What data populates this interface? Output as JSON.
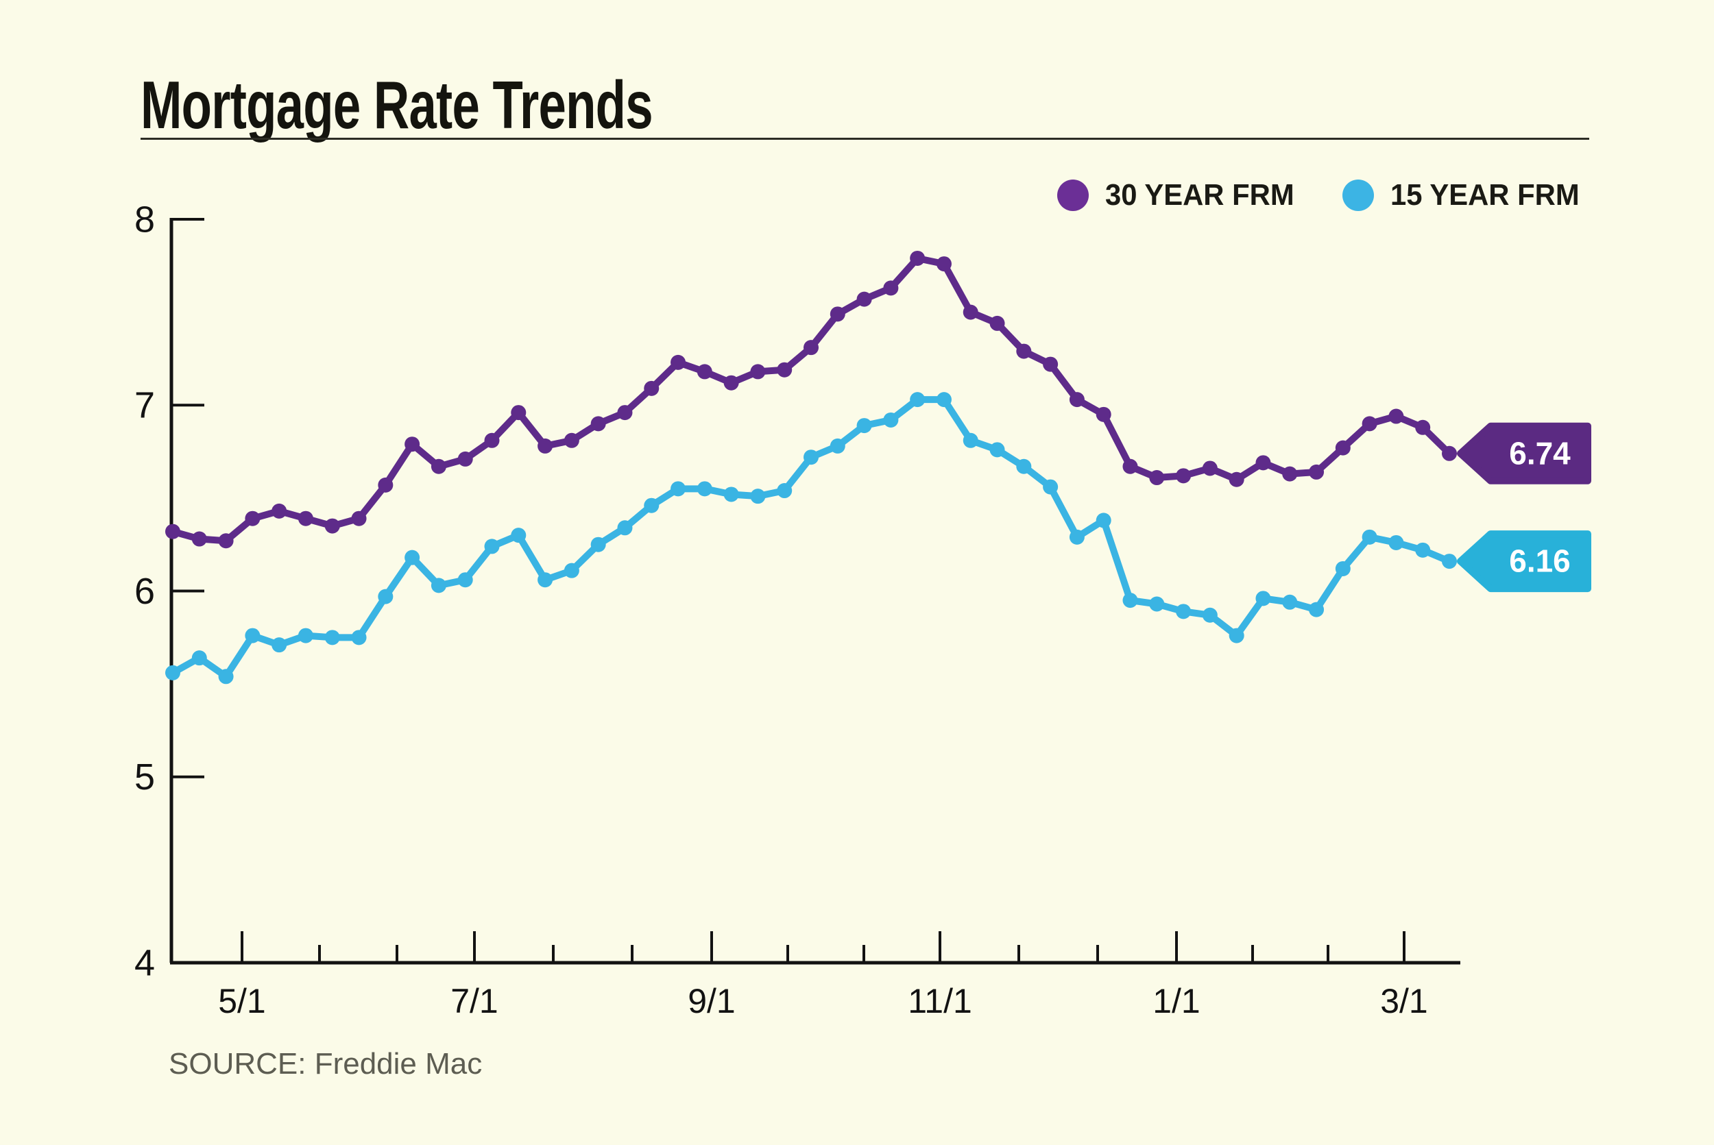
{
  "title": "Mortgage Rate Trends",
  "source": "SOURCE: Freddie Mac",
  "colors": {
    "background": "#fbfbe8",
    "axis": "#121212",
    "series_30yr": "#5e2b8a",
    "series_15yr": "#3ab4e3",
    "tag_30yr": "#5b2a82",
    "tag_15yr": "#28b1d9",
    "legend_30yr": "#6b2f96",
    "legend_15yr": "#3cb4e4",
    "tag_text": "#ffffff"
  },
  "legend": [
    {
      "label": "30 YEAR FRM",
      "color": "#6b2f96"
    },
    {
      "label": "15 YEAR FRM",
      "color": "#3cb4e4"
    }
  ],
  "end_tags": [
    {
      "value": "6.74",
      "color": "#5b2a82"
    },
    {
      "value": "6.16",
      "color": "#28b1d9"
    }
  ],
  "chart_data": {
    "type": "line",
    "title": "Mortgage Rate Trends",
    "xlabel": "",
    "ylabel": "",
    "ylim": [
      4,
      8
    ],
    "y_tick_labels": [
      "8",
      "7",
      "6",
      "5",
      "4"
    ],
    "y_tick_values": [
      8,
      7,
      6,
      5,
      4
    ],
    "x_tick_labels": [
      "5/1",
      "7/1",
      "9/1",
      "11/1",
      "1/1",
      "3/1"
    ],
    "grid": false,
    "legend_position": "top-right",
    "markers": true,
    "series": [
      {
        "name": "30 YEAR FRM",
        "color": "#5e2b8a",
        "end_label": "6.74",
        "values": [
          6.32,
          6.28,
          6.27,
          6.39,
          6.43,
          6.39,
          6.35,
          6.39,
          6.57,
          6.79,
          6.67,
          6.71,
          6.81,
          6.96,
          6.78,
          6.81,
          6.9,
          6.96,
          7.09,
          7.23,
          7.18,
          7.12,
          7.18,
          7.19,
          7.31,
          7.49,
          7.57,
          7.63,
          7.79,
          7.76,
          7.5,
          7.44,
          7.29,
          7.22,
          7.03,
          6.95,
          6.67,
          6.61,
          6.62,
          6.66,
          6.6,
          6.69,
          6.63,
          6.64,
          6.77,
          6.9,
          6.94,
          6.88,
          6.74
        ]
      },
      {
        "name": "15 YEAR FRM",
        "color": "#3ab4e3",
        "end_label": "6.16",
        "values": [
          5.56,
          5.64,
          5.54,
          5.76,
          5.71,
          5.76,
          5.75,
          5.75,
          5.97,
          6.18,
          6.03,
          6.06,
          6.24,
          6.3,
          6.06,
          6.11,
          6.25,
          6.34,
          6.46,
          6.55,
          6.55,
          6.52,
          6.51,
          6.54,
          6.72,
          6.78,
          6.89,
          6.92,
          7.03,
          7.03,
          6.81,
          6.76,
          6.67,
          6.56,
          6.29,
          6.38,
          5.95,
          5.93,
          5.89,
          5.87,
          5.76,
          5.96,
          5.94,
          5.9,
          6.12,
          6.29,
          6.26,
          6.22,
          6.16
        ]
      }
    ]
  }
}
